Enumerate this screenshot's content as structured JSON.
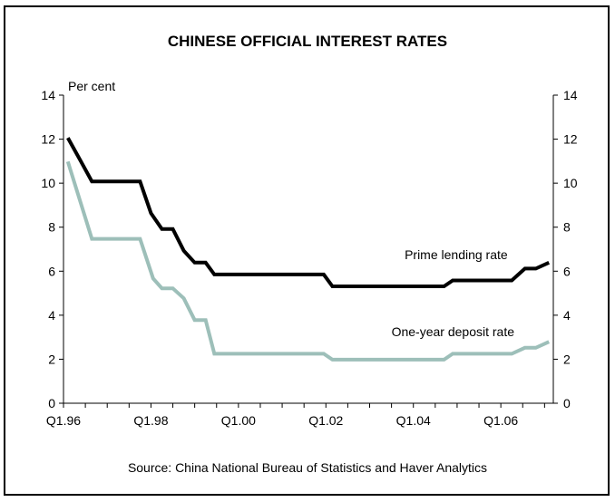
{
  "chart_data": {
    "type": "line",
    "title": "CHINESE OFFICIAL INTEREST RATES",
    "ylabel": "Per cent",
    "source": "Source: China National Bureau of Statistics and Haver Analytics",
    "ylim": [
      0,
      14
    ],
    "y_ticks": [
      "0",
      "2",
      "4",
      "6",
      "8",
      "10",
      "12",
      "14"
    ],
    "xlim": [
      1996.0,
      2007.2
    ],
    "x_ticks": [
      {
        "value": 1996.0,
        "label": "Q1.96"
      },
      {
        "value": 1998.0,
        "label": "Q1.98"
      },
      {
        "value": 2000.0,
        "label": "Q1.00"
      },
      {
        "value": 2002.0,
        "label": "Q1.02"
      },
      {
        "value": 2004.0,
        "label": "Q1.04"
      },
      {
        "value": 2006.0,
        "label": "Q1.06"
      }
    ],
    "grid": false,
    "series": [
      {
        "name": "Prime lending rate",
        "color": "#000000",
        "points": [
          [
            1996.1,
            12.06
          ],
          [
            1996.4,
            10.98
          ],
          [
            1996.65,
            10.08
          ],
          [
            1997.75,
            10.08
          ],
          [
            1998.0,
            8.64
          ],
          [
            1998.25,
            7.92
          ],
          [
            1998.5,
            7.92
          ],
          [
            1998.75,
            6.93
          ],
          [
            1999.0,
            6.39
          ],
          [
            1999.25,
            6.39
          ],
          [
            1999.45,
            5.85
          ],
          [
            2001.95,
            5.85
          ],
          [
            2002.15,
            5.31
          ],
          [
            2004.7,
            5.31
          ],
          [
            2004.9,
            5.58
          ],
          [
            2006.25,
            5.58
          ],
          [
            2006.55,
            6.12
          ],
          [
            2006.8,
            6.12
          ],
          [
            2007.1,
            6.39
          ]
        ]
      },
      {
        "name": "One-year deposit rate",
        "color": "#9dbfb9",
        "points": [
          [
            1996.1,
            10.98
          ],
          [
            1996.65,
            7.47
          ],
          [
            1997.75,
            7.47
          ],
          [
            1998.05,
            5.67
          ],
          [
            1998.25,
            5.22
          ],
          [
            1998.5,
            5.22
          ],
          [
            1998.75,
            4.77
          ],
          [
            1999.0,
            3.78
          ],
          [
            1999.25,
            3.78
          ],
          [
            1999.45,
            2.25
          ],
          [
            2001.95,
            2.25
          ],
          [
            2002.15,
            1.98
          ],
          [
            2004.7,
            1.98
          ],
          [
            2004.9,
            2.25
          ],
          [
            2006.25,
            2.25
          ],
          [
            2006.55,
            2.52
          ],
          [
            2006.8,
            2.52
          ],
          [
            2007.1,
            2.79
          ]
        ]
      }
    ]
  }
}
